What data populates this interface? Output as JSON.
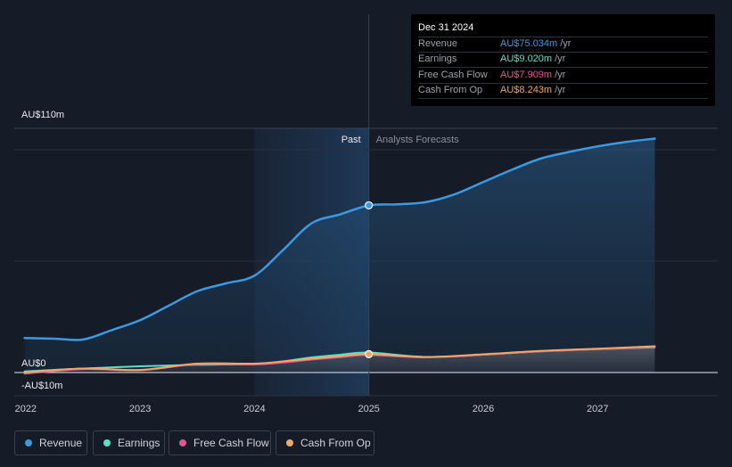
{
  "tooltip": {
    "date": "Dec 31 2024",
    "rows": [
      {
        "label": "Revenue",
        "value": "AU$75.034m",
        "unit": "/yr",
        "color": "#3b9ae1"
      },
      {
        "label": "Earnings",
        "value": "AU$9.020m",
        "unit": "/yr",
        "color": "#5ce0c6"
      },
      {
        "label": "Free Cash Flow",
        "value": "AU$7.909m",
        "unit": "/yr",
        "color": "#e0558f"
      },
      {
        "label": "Cash From Op",
        "value": "AU$8.243m",
        "unit": "/yr",
        "color": "#f0a863"
      }
    ]
  },
  "legend": [
    {
      "label": "Revenue",
      "color": "#3b9ae1"
    },
    {
      "label": "Earnings",
      "color": "#5ce0c6"
    },
    {
      "label": "Free Cash Flow",
      "color": "#e0558f"
    },
    {
      "label": "Cash From Op",
      "color": "#f0a863"
    }
  ],
  "chart_data": {
    "type": "line",
    "y_tick_labels": [
      "AU$110m",
      "AU$0",
      "-AU$10m"
    ],
    "ylim": [
      -10,
      110
    ],
    "x_tick_labels": [
      "2022",
      "2023",
      "2024",
      "2025",
      "2026",
      "2027"
    ],
    "x_ticks": [
      2022,
      2023,
      2024,
      2025,
      2026,
      2027
    ],
    "xlim": [
      2021.9,
      2028.05
    ],
    "past_label": "Past",
    "forecast_label": "Analysts Forecasts",
    "divider_x": 2025.0,
    "highlight_start_x": 2024.0,
    "grid": true,
    "legend_position": "bottom-left",
    "series": [
      {
        "name": "Revenue",
        "color": "#3b9ae1",
        "x": [
          2021.99,
          2022.25,
          2022.5,
          2022.75,
          2023.0,
          2023.25,
          2023.5,
          2023.75,
          2024.0,
          2024.25,
          2024.5,
          2024.75,
          2025.0,
          2025.25,
          2025.5,
          2025.75,
          2026.0,
          2026.25,
          2026.5,
          2026.75,
          2027.0,
          2027.25,
          2027.5
        ],
        "y": [
          15.5,
          15.2,
          14.8,
          19.0,
          23.5,
          30.0,
          36.5,
          40.0,
          43.5,
          55.0,
          67.0,
          71.0,
          75.0,
          75.5,
          76.5,
          80.0,
          85.5,
          91.0,
          96.0,
          99.0,
          101.5,
          103.5,
          105.0
        ]
      },
      {
        "name": "Earnings",
        "color": "#5ce0c6",
        "x": [
          2021.99,
          2022.5,
          2023.0,
          2023.5,
          2024.0,
          2024.25,
          2024.5,
          2024.75,
          2025.0,
          2025.5,
          2026.0,
          2026.5,
          2027.0,
          2027.5
        ],
        "y": [
          0.5,
          1.8,
          2.8,
          3.5,
          3.8,
          5.0,
          6.8,
          8.0,
          9.0,
          7.0,
          8.0,
          9.5,
          10.5,
          11.3
        ]
      },
      {
        "name": "Free Cash Flow",
        "color": "#e0558f",
        "x": [
          2021.99,
          2022.5,
          2023.0,
          2023.5,
          2024.0,
          2024.25,
          2024.5,
          2024.75,
          2025.0,
          2025.5,
          2026.0,
          2026.5,
          2027.0,
          2027.5
        ],
        "y": [
          -0.5,
          1.5,
          1.0,
          3.8,
          3.6,
          4.5,
          5.8,
          6.9,
          7.9,
          6.8,
          8.0,
          9.5,
          10.5,
          11.5
        ]
      },
      {
        "name": "Cash From Op",
        "color": "#f0a863",
        "x": [
          2021.99,
          2022.5,
          2023.0,
          2023.5,
          2024.0,
          2024.25,
          2024.5,
          2024.75,
          2025.0,
          2025.5,
          2026.0,
          2026.5,
          2027.0,
          2027.5
        ],
        "y": [
          0.0,
          1.8,
          1.2,
          4.0,
          4.0,
          5.0,
          6.2,
          7.3,
          8.243,
          7.0,
          8.2,
          9.7,
          10.7,
          11.8
        ]
      }
    ],
    "markers": [
      {
        "series": "Revenue",
        "x": 2025.0,
        "y": 75.034
      },
      {
        "series": "Cash From Op",
        "x": 2025.0,
        "y": 8.243
      }
    ]
  }
}
